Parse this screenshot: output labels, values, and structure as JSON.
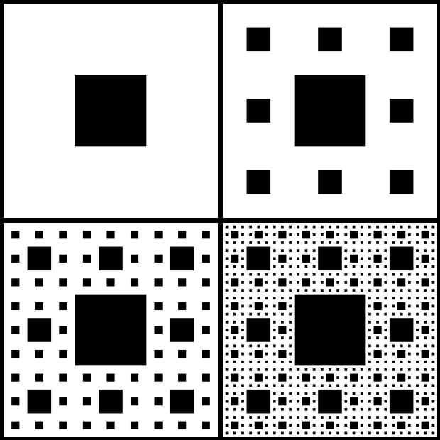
{
  "figure": {
    "panels": [
      {
        "iteration": 1
      },
      {
        "iteration": 2
      },
      {
        "iteration": 3
      },
      {
        "iteration": 4
      }
    ],
    "grid": {
      "rows": 2,
      "columns": 2
    },
    "colors": {
      "background": "#000000",
      "panel_fill": "#ffffff",
      "hole_fill": "#000000"
    },
    "pattern": "sierpinski-carpet"
  }
}
